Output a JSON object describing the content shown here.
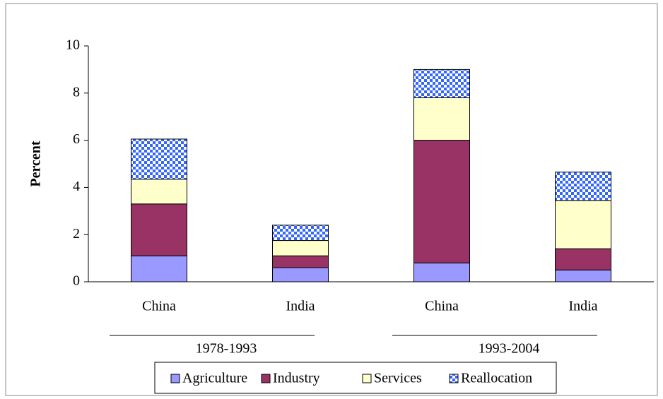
{
  "chart_data": {
    "type": "stacked_bar",
    "y_label": "Percent",
    "categories": [
      "China",
      "India",
      "China",
      "India"
    ],
    "groups": [
      "1978-1993",
      "1993-2004"
    ],
    "series": [
      {
        "name": "Agriculture",
        "color": "#9999ff",
        "values": [
          1.1,
          0.6,
          0.8,
          0.5
        ]
      },
      {
        "name": "Industry",
        "color": "#993366",
        "values": [
          2.2,
          0.5,
          5.2,
          0.9
        ]
      },
      {
        "name": "Services",
        "color": "#ffffcc",
        "values": [
          1.05,
          0.65,
          1.8,
          2.05
        ]
      },
      {
        "name": "Reallocation",
        "color": "#3366ff",
        "pattern": "checker",
        "values": [
          1.7,
          0.65,
          1.2,
          1.2
        ]
      }
    ],
    "ylim": [
      0,
      10
    ],
    "yticks": [
      0,
      2,
      4,
      6,
      8,
      10
    ],
    "legend": "bottom"
  }
}
